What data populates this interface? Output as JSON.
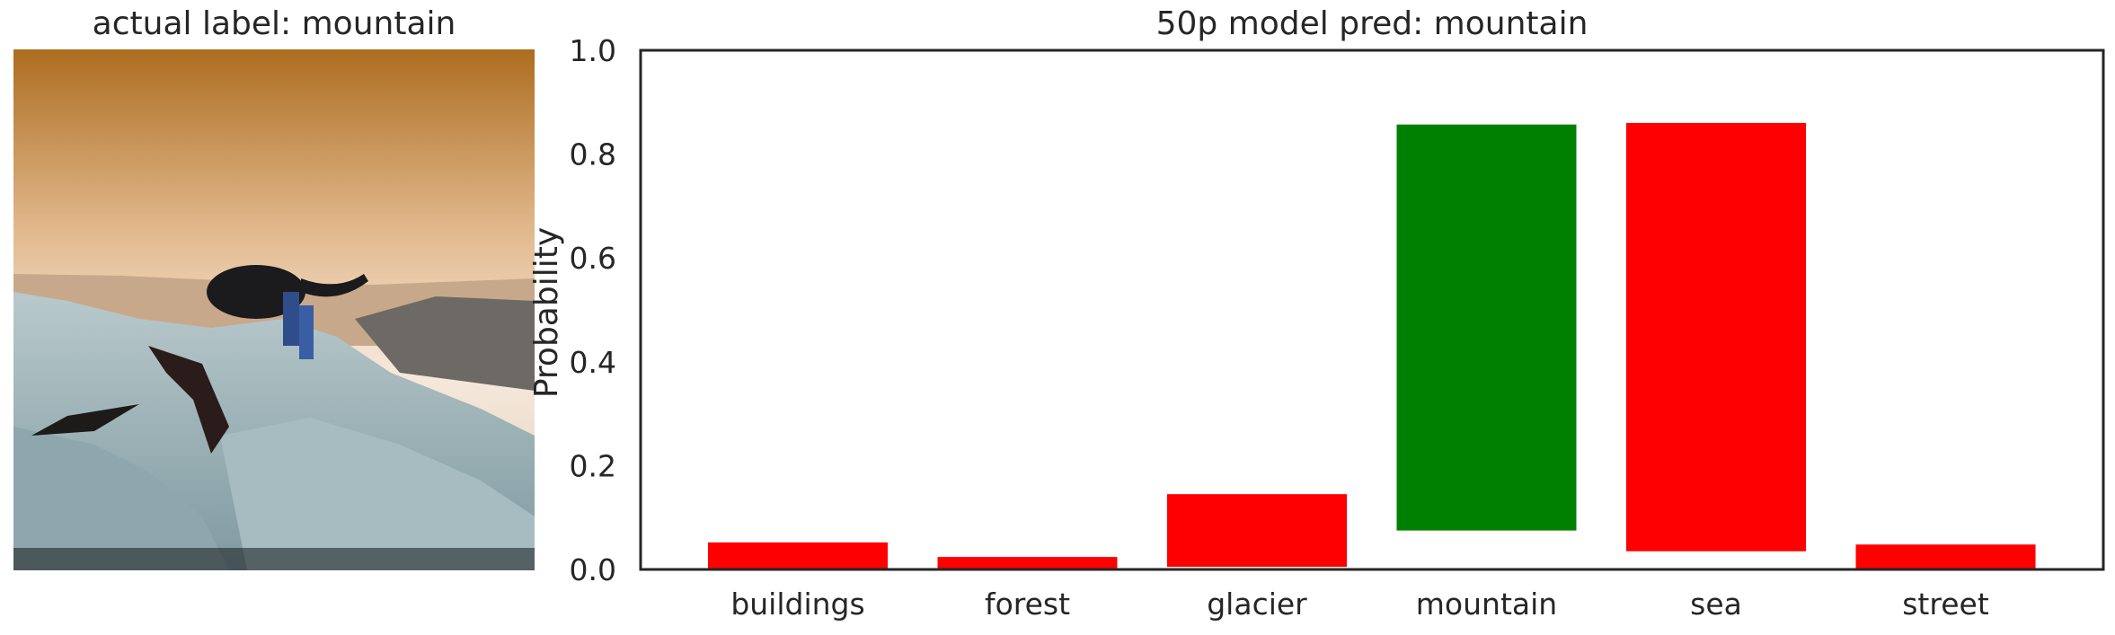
{
  "image_panel": {
    "title": "actual label: mountain",
    "image_alt": "Photo of an animal standing on a rocky mountain summit under an orange sky"
  },
  "colors": {
    "correct": "#008000",
    "incorrect": "#ff0000",
    "sky_top": "#b0742c",
    "rock": "#9fb3b8"
  },
  "chart_data": {
    "type": "bar",
    "title": "50p model pred: mountain",
    "xlabel": "",
    "ylabel": "Probability",
    "ylim": [
      0,
      1.0
    ],
    "yticks": [
      "0.0",
      "0.2",
      "0.4",
      "0.6",
      "0.8",
      "1.0"
    ],
    "categories": [
      "buildings",
      "forest",
      "glacier",
      "mountain",
      "sea",
      "street"
    ],
    "bar_bottom": [
      0.0,
      0.0,
      0.005,
      0.075,
      0.035,
      0.0
    ],
    "bar_top": [
      0.052,
      0.024,
      0.145,
      0.857,
      0.86,
      0.048
    ],
    "bar_colors": [
      "#ff0000",
      "#ff0000",
      "#ff0000",
      "#008000",
      "#ff0000",
      "#ff0000"
    ],
    "grid": false,
    "legend": "none"
  }
}
